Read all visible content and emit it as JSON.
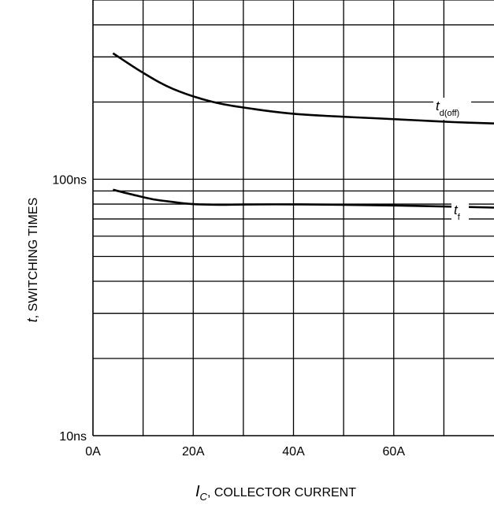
{
  "chart_data": {
    "type": "line",
    "xlabel": {
      "var": "I",
      "sub": "C",
      "text": ", COLLECTOR CURRENT"
    },
    "ylabel": {
      "var": "t",
      "text": ", SWITCHING TIMES"
    },
    "x_ticks": [
      {
        "value": 0,
        "label": "0A"
      },
      {
        "value": 20,
        "label": "20A"
      },
      {
        "value": 40,
        "label": "40A"
      },
      {
        "value": 60,
        "label": "60A"
      }
    ],
    "y_ticks": [
      {
        "value": 10,
        "label": "10ns"
      },
      {
        "value": 100,
        "label": "100ns"
      }
    ],
    "xlim": [
      0,
      80
    ],
    "ylim": [
      10,
      500
    ],
    "y_scale": "log",
    "grid": true,
    "series": [
      {
        "name": "t",
        "sub": "d(off)",
        "x": [
          4,
          10,
          16,
          24,
          32,
          40,
          48,
          56,
          64,
          72,
          80
        ],
        "y": [
          310,
          260,
          225,
          200,
          188,
          180,
          176,
          173,
          170,
          167,
          165
        ]
      },
      {
        "name": "t",
        "sub": "f",
        "x": [
          4,
          8,
          12,
          16,
          20,
          25,
          30,
          40,
          50,
          60,
          70,
          80
        ],
        "y": [
          91,
          87,
          83.5,
          81.5,
          80,
          79.5,
          79.7,
          79.8,
          79.5,
          79,
          78.3,
          77.5
        ]
      }
    ]
  }
}
